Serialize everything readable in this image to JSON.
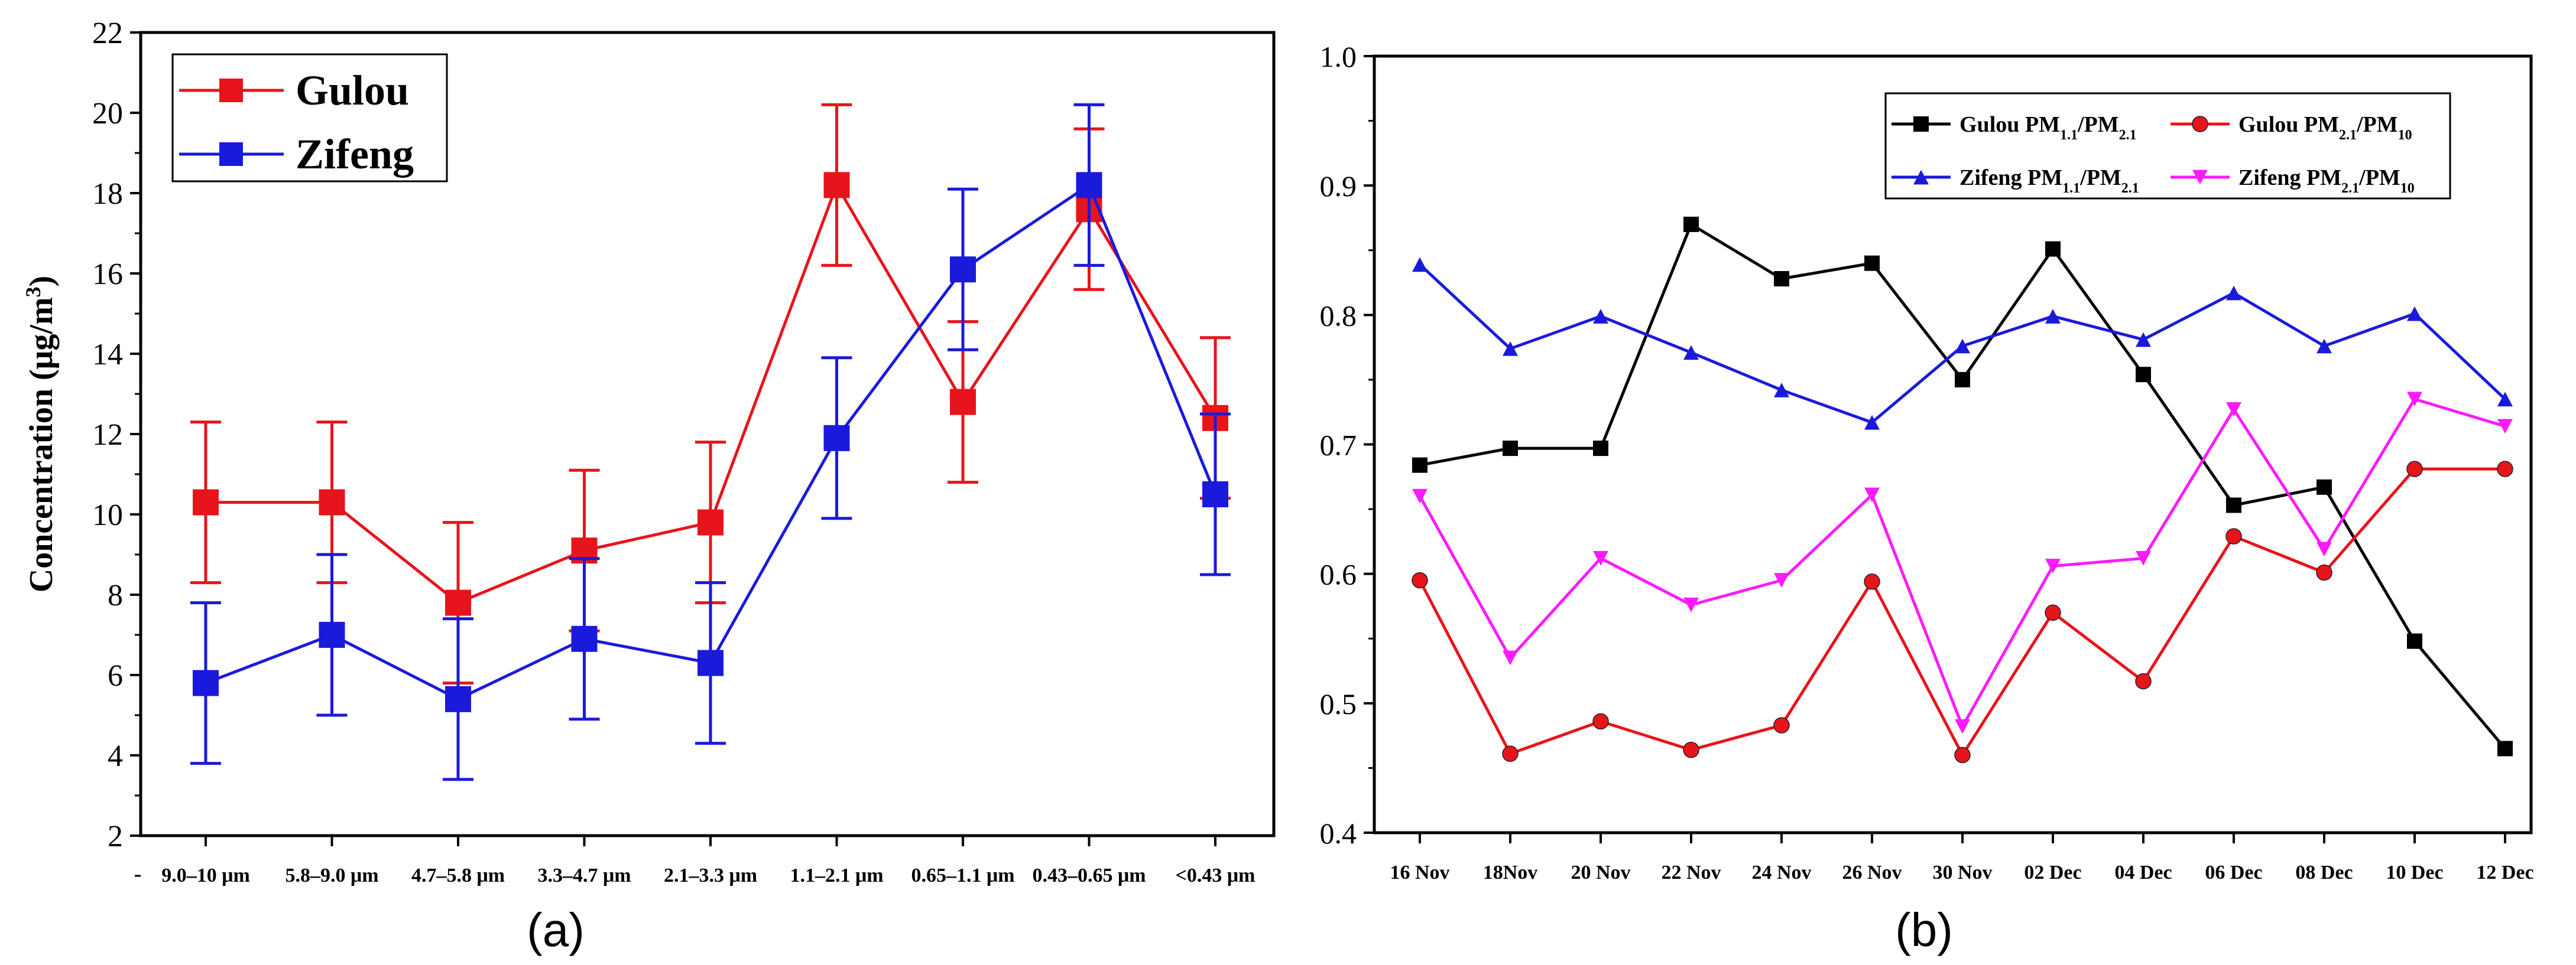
{
  "chart_data": [
    {
      "type": "line",
      "panel_label": "(a)",
      "ylabel": "Concentration (μg/m³)",
      "ylabel_parts": {
        "main": "Concentration (",
        "mu": "μg/m",
        "sup": "3",
        "close": ")"
      },
      "xlabel": "",
      "ylim": [
        2,
        22
      ],
      "yticks": [
        2,
        4,
        6,
        8,
        10,
        12,
        14,
        16,
        18,
        20,
        22
      ],
      "categories": [
        "9.0–10 μm",
        "5.8–9.0 μm",
        "4.7–5.8 μm",
        "3.3–4.7 μm",
        "2.1–3.3 μm",
        "1.1–2.1 μm",
        "0.65–1.1 μm",
        "0.43–0.65 μm",
        "<0.43 μm"
      ],
      "legend_position": "top-left",
      "series": [
        {
          "name": "Gulou",
          "color": "#e8141b",
          "marker": "square",
          "values": [
            10.3,
            10.3,
            7.8,
            9.1,
            9.8,
            18.2,
            12.8,
            17.6,
            12.4
          ],
          "errors": [
            2.0,
            2.0,
            2.0,
            2.0,
            2.0,
            2.0,
            2.0,
            2.0,
            2.0
          ]
        },
        {
          "name": "Zifeng",
          "color": "#1a1adb",
          "marker": "square",
          "values": [
            5.8,
            7.0,
            5.4,
            6.9,
            6.3,
            11.9,
            16.1,
            18.2,
            10.5
          ],
          "errors": [
            2.0,
            2.0,
            2.0,
            2.0,
            2.0,
            2.0,
            2.0,
            2.0,
            2.0
          ]
        }
      ]
    },
    {
      "type": "line",
      "panel_label": "(b)",
      "xlabel": "",
      "ylabel": "",
      "ylim": [
        0.4,
        1.0
      ],
      "yticks": [
        "0.4",
        "0.5",
        "0.6",
        "0.7",
        "0.8",
        "0.9",
        "1.0"
      ],
      "categories": [
        "16 Nov",
        "18Nov",
        "20 Nov",
        "22 Nov",
        "24 Nov",
        "26 Nov",
        "30 Nov",
        "02 Dec",
        "04 Dec",
        "06 Dec",
        "08 Dec",
        "10 Dec",
        "12 Dec"
      ],
      "legend_position": "top-right",
      "series": [
        {
          "name": "Gulou PM1.1/PM2.1",
          "site": "Gulou",
          "num": "1.1",
          "den": "2.1",
          "color": "#000000",
          "marker": "square",
          "values": [
            0.684,
            0.697,
            0.697,
            0.87,
            0.828,
            0.84,
            0.75,
            0.851,
            0.754,
            0.653,
            0.667,
            0.548,
            0.465
          ]
        },
        {
          "name": "Gulou PM2.1/PM10",
          "site": "Gulou",
          "num": "2.1",
          "den": "10",
          "color": "#e8141b",
          "marker": "circle",
          "values": [
            0.595,
            0.461,
            0.486,
            0.464,
            0.483,
            0.594,
            0.46,
            0.57,
            0.517,
            0.629,
            0.601,
            0.681,
            0.681
          ]
        },
        {
          "name": "Zifeng PM1.1/PM2.1",
          "site": "Zifeng",
          "num": "1.1",
          "den": "2.1",
          "color": "#1a1adb",
          "marker": "triangle-up",
          "values": [
            0.839,
            0.774,
            0.799,
            0.771,
            0.742,
            0.717,
            0.776,
            0.799,
            0.781,
            0.817,
            0.776,
            0.801,
            0.735
          ]
        },
        {
          "name": "Zifeng PM2.1/PM10",
          "site": "Zifeng",
          "num": "2.1",
          "den": "10",
          "color": "#ff1aff",
          "marker": "triangle-down",
          "values": [
            0.66,
            0.535,
            0.612,
            0.576,
            0.595,
            0.661,
            0.482,
            0.606,
            0.612,
            0.727,
            0.619,
            0.735,
            0.714
          ]
        }
      ]
    }
  ]
}
